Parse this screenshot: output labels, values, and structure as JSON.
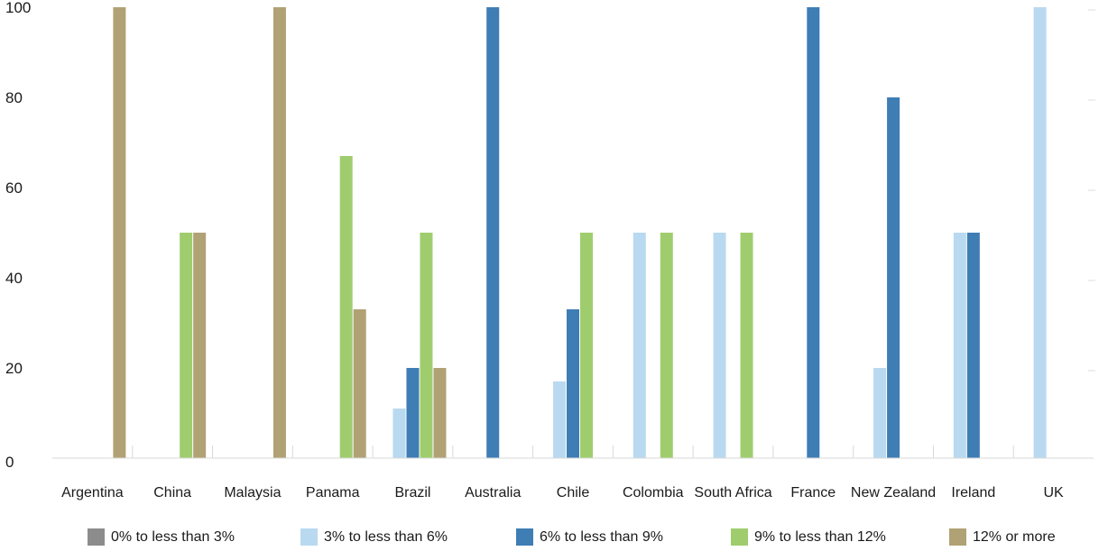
{
  "chart_data": {
    "type": "bar",
    "title": "",
    "xlabel": "",
    "ylabel": "",
    "ylim": [
      0,
      100
    ],
    "yticks": [
      0,
      20,
      40,
      60,
      80,
      100
    ],
    "categories": [
      "Argentina",
      "China",
      "Malaysia",
      "Panama",
      "Brazil",
      "Australia",
      "Chile",
      "Colombia",
      "South Africa",
      "France",
      "New Zealand",
      "Ireland",
      "UK"
    ],
    "series": [
      {
        "name": "0% to less than 3%",
        "color": "#8c8c8c",
        "values": [
          0,
          0,
          0,
          0,
          0,
          0,
          0,
          0,
          0,
          0,
          0,
          0,
          0
        ]
      },
      {
        "name": "3% to less than 6%",
        "color": "#b9d9f0",
        "values": [
          0,
          0,
          0,
          0,
          11,
          0,
          17,
          50,
          50,
          0,
          20,
          50,
          100
        ]
      },
      {
        "name": "6% to less than 9%",
        "color": "#3f7db5",
        "values": [
          0,
          0,
          0,
          0,
          20,
          100,
          33,
          0,
          0,
          100,
          80,
          50,
          0
        ]
      },
      {
        "name": "9% to less than 12%",
        "color": "#9fcd6e",
        "values": [
          0,
          50,
          0,
          67,
          50,
          0,
          50,
          50,
          50,
          0,
          0,
          0,
          0
        ]
      },
      {
        "name": "12% or more",
        "color": "#b0a274",
        "values": [
          100,
          50,
          100,
          33,
          20,
          0,
          0,
          0,
          0,
          0,
          0,
          0,
          0
        ]
      }
    ],
    "grid": false,
    "legend_position": "bottom"
  }
}
